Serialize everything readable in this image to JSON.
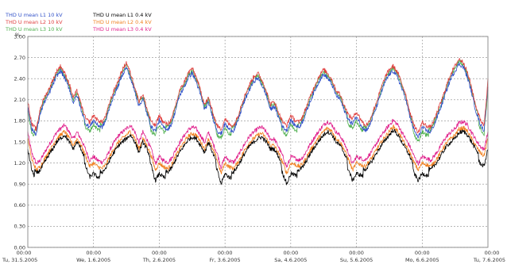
{
  "chart_data": {
    "type": "line",
    "y_unit": "%",
    "ylim": [
      0.0,
      3.0
    ],
    "y_ticks": [
      "0.00",
      "0.30",
      "0.60",
      "0.90",
      "1.20",
      "1.50",
      "1.80",
      "2.10",
      "2.40",
      "2.70",
      "3.00"
    ],
    "x_ticks": [
      {
        "time": "00:00",
        "date": "Tu, 31.5.2005"
      },
      {
        "time": "00:00",
        "date": "We, 1.6.2005"
      },
      {
        "time": "00:00",
        "date": "Th, 2.6.2005"
      },
      {
        "time": "00:00",
        "date": "Fr, 3.6.2005"
      },
      {
        "time": "00:00",
        "date": "Sa, 4.6.2005"
      },
      {
        "time": "00:00",
        "date": "Su, 5.6.2005"
      },
      {
        "time": "00:00",
        "date": "Mo, 6.6.2005"
      },
      {
        "time": "00:00",
        "date": "Tu, 7.6.2005"
      }
    ],
    "grid": true,
    "legend_position": "top-left",
    "series": [
      {
        "name": "THD U mean L1  10 kV",
        "color": "#3050c8",
        "group": "10kV",
        "phase": 1
      },
      {
        "name": "THD U mean L2  10 kV",
        "color": "#e04040",
        "group": "10kV",
        "phase": 2
      },
      {
        "name": "THD U mean L3  10 kV",
        "color": "#50b050",
        "group": "10kV",
        "phase": 3
      },
      {
        "name": "THD U mean L1  0.4 kV",
        "color": "#000000",
        "group": "04kV",
        "phase": 1
      },
      {
        "name": "THD U mean L2  0.4 kV",
        "color": "#f08020",
        "group": "04kV",
        "phase": 2
      },
      {
        "name": "THD U mean L3  0.4 kV",
        "color": "#e0208c",
        "group": "04kV",
        "phase": 3
      }
    ],
    "profile_10kV": {
      "day_offsets": [
        0.0,
        0.06,
        0.13,
        0.19,
        0.25,
        0.31,
        0.38,
        0.44,
        0.5,
        0.56,
        0.63,
        0.69,
        0.75,
        0.81,
        0.88,
        0.94,
        1.0
      ],
      "days": [
        [
          2.05,
          1.72,
          1.65,
          1.95,
          2.1,
          2.2,
          2.35,
          2.48,
          2.55,
          2.45,
          2.3,
          2.1,
          2.2,
          2.0,
          1.8,
          1.75,
          1.85
        ],
        [
          1.85,
          1.78,
          1.75,
          1.85,
          2.05,
          2.2,
          2.35,
          2.5,
          2.6,
          2.45,
          2.25,
          2.05,
          2.15,
          1.95,
          1.75,
          1.7,
          1.85
        ],
        [
          1.85,
          1.75,
          1.72,
          1.8,
          2.0,
          2.2,
          2.32,
          2.45,
          2.52,
          2.4,
          2.2,
          2.0,
          2.1,
          1.9,
          1.7,
          1.65,
          1.8
        ],
        [
          1.8,
          1.72,
          1.7,
          1.82,
          2.0,
          2.15,
          2.3,
          2.4,
          2.45,
          2.35,
          2.2,
          2.0,
          2.05,
          1.9,
          1.75,
          1.7,
          1.85
        ],
        [
          1.85,
          1.78,
          1.75,
          1.85,
          2.0,
          2.15,
          2.3,
          2.42,
          2.5,
          2.45,
          2.35,
          2.2,
          2.15,
          2.0,
          1.85,
          1.8,
          1.9
        ],
        [
          1.9,
          1.8,
          1.7,
          1.75,
          1.9,
          2.05,
          2.25,
          2.4,
          2.5,
          2.55,
          2.45,
          2.3,
          2.15,
          1.9,
          1.7,
          1.6,
          1.75
        ],
        [
          1.75,
          1.7,
          1.68,
          1.8,
          1.95,
          2.1,
          2.3,
          2.45,
          2.55,
          2.65,
          2.6,
          2.45,
          2.25,
          2.0,
          1.8,
          1.7,
          1.85
        ]
      ],
      "end_value": 2.35
    },
    "profile_04kV": {
      "day_offsets": [
        0.0,
        0.06,
        0.13,
        0.19,
        0.25,
        0.31,
        0.38,
        0.44,
        0.5,
        0.56,
        0.63,
        0.69,
        0.75,
        0.81,
        0.88,
        0.94,
        1.0
      ],
      "days": [
        [
          1.55,
          1.25,
          1.1,
          1.15,
          1.25,
          1.35,
          1.45,
          1.55,
          1.6,
          1.65,
          1.55,
          1.45,
          1.55,
          1.45,
          1.3,
          1.15,
          1.2
        ],
        [
          1.2,
          1.15,
          1.12,
          1.18,
          1.3,
          1.4,
          1.5,
          1.55,
          1.6,
          1.65,
          1.55,
          1.4,
          1.55,
          1.45,
          1.3,
          1.1,
          1.2
        ],
        [
          1.2,
          1.15,
          1.12,
          1.18,
          1.3,
          1.4,
          1.5,
          1.58,
          1.62,
          1.6,
          1.5,
          1.4,
          1.55,
          1.4,
          1.25,
          1.05,
          1.15
        ],
        [
          1.2,
          1.15,
          1.12,
          1.2,
          1.3,
          1.4,
          1.5,
          1.55,
          1.6,
          1.62,
          1.55,
          1.45,
          1.45,
          1.35,
          1.2,
          1.05,
          1.15
        ],
        [
          1.2,
          1.18,
          1.15,
          1.2,
          1.3,
          1.4,
          1.5,
          1.58,
          1.65,
          1.7,
          1.65,
          1.55,
          1.5,
          1.4,
          1.25,
          1.1,
          1.15
        ],
        [
          1.2,
          1.18,
          1.15,
          1.22,
          1.3,
          1.4,
          1.5,
          1.58,
          1.65,
          1.72,
          1.65,
          1.55,
          1.45,
          1.35,
          1.2,
          1.1,
          1.2
        ],
        [
          1.2,
          1.18,
          1.15,
          1.22,
          1.3,
          1.4,
          1.5,
          1.55,
          1.6,
          1.68,
          1.7,
          1.65,
          1.55,
          1.45,
          1.35,
          1.3,
          1.45
        ]
      ],
      "end_value": 1.55
    }
  }
}
